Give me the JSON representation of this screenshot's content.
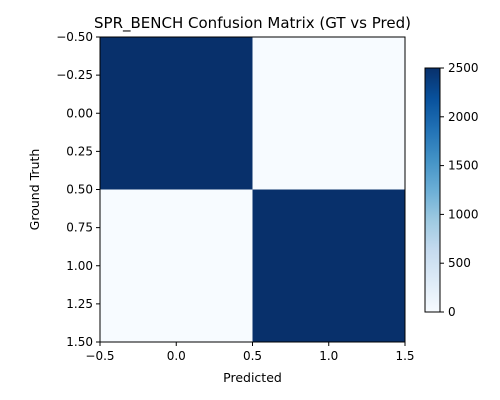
{
  "chart_data": {
    "type": "heatmap",
    "title": "SPR_BENCH Confusion Matrix (GT vs Pred)",
    "xlabel": "Predicted",
    "ylabel": "Ground Truth",
    "matrix": [
      [
        2500,
        0
      ],
      [
        0,
        2500
      ]
    ],
    "xlim": [
      -0.5,
      1.5
    ],
    "ylim": [
      1.5,
      -0.5
    ],
    "x_ticks": [
      "−0.5",
      "0.0",
      "0.5",
      "1.0",
      "1.5"
    ],
    "y_ticks": [
      "−0.50",
      "−0.25",
      "0.00",
      "0.25",
      "0.50",
      "0.75",
      "1.00",
      "1.25",
      "1.50"
    ],
    "colorbar": {
      "min": 0,
      "max": 2500,
      "ticks": [
        "0",
        "500",
        "1000",
        "1500",
        "2000",
        "2500"
      ]
    },
    "colormap": "Blues",
    "grid": false
  }
}
